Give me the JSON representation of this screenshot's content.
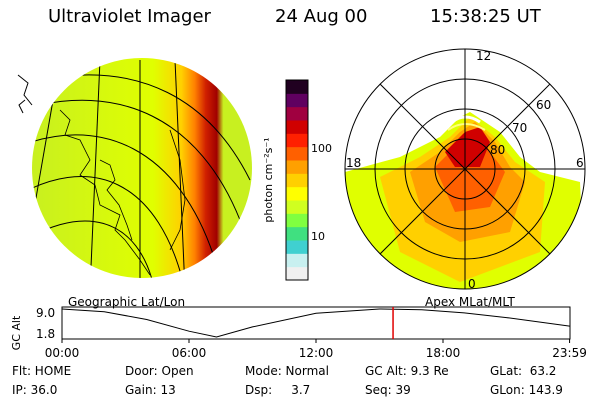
{
  "header": {
    "title": "Ultraviolet Imager",
    "date": "24 Aug 00",
    "time": "15:38:25 UT"
  },
  "panels": {
    "left_label": "Geographic Lat/Lon",
    "right_label": "Apex MLat/MLT"
  },
  "colorbar": {
    "ylabel": "photon cm⁻²s⁻¹",
    "ticks": [
      "100",
      "10"
    ],
    "colors": [
      "#f0f0f0",
      "#c8f0f0",
      "#40d0d0",
      "#40e080",
      "#80ff40",
      "#d0ff20",
      "#ffff00",
      "#ffd000",
      "#ffa000",
      "#ff6000",
      "#ff2000",
      "#d00000",
      "#a00040",
      "#600060",
      "#200020"
    ]
  },
  "polar_plot": {
    "mlt_labels": [
      "12",
      "18",
      "6",
      "0"
    ],
    "mlat_labels": [
      "60",
      "70",
      "80"
    ]
  },
  "chart_data": {
    "type": "line",
    "title": "",
    "xlabel": "",
    "ylabel": "GC Alt",
    "yticks": [
      "9.0",
      "1.8"
    ],
    "xticks": [
      "00:00",
      "06:00",
      "12:00",
      "18:00",
      "23:59"
    ],
    "ylim": [
      1.8,
      9.0
    ],
    "xlim": [
      0,
      24
    ],
    "series": [
      {
        "x": [
          0,
          2,
          4,
          6,
          7.3,
          9,
          12,
          15,
          17,
          19,
          21,
          23.98
        ],
        "values": [
          9.0,
          8.3,
          6.3,
          3.3,
          1.8,
          4.4,
          7.9,
          9.0,
          8.8,
          8.0,
          6.8,
          4.6
        ]
      }
    ],
    "current_time": 15.64
  },
  "info": {
    "row1": [
      "Flt: HOME",
      "Door: Open",
      "Mode: Normal",
      "GC Alt: 9.3 Re",
      "GLat:  63.2"
    ],
    "row2": [
      "IP: 36.0",
      "Gain: 13",
      "Dsp:     3.7",
      "Seq: 39",
      "GLon: 143.9"
    ]
  }
}
